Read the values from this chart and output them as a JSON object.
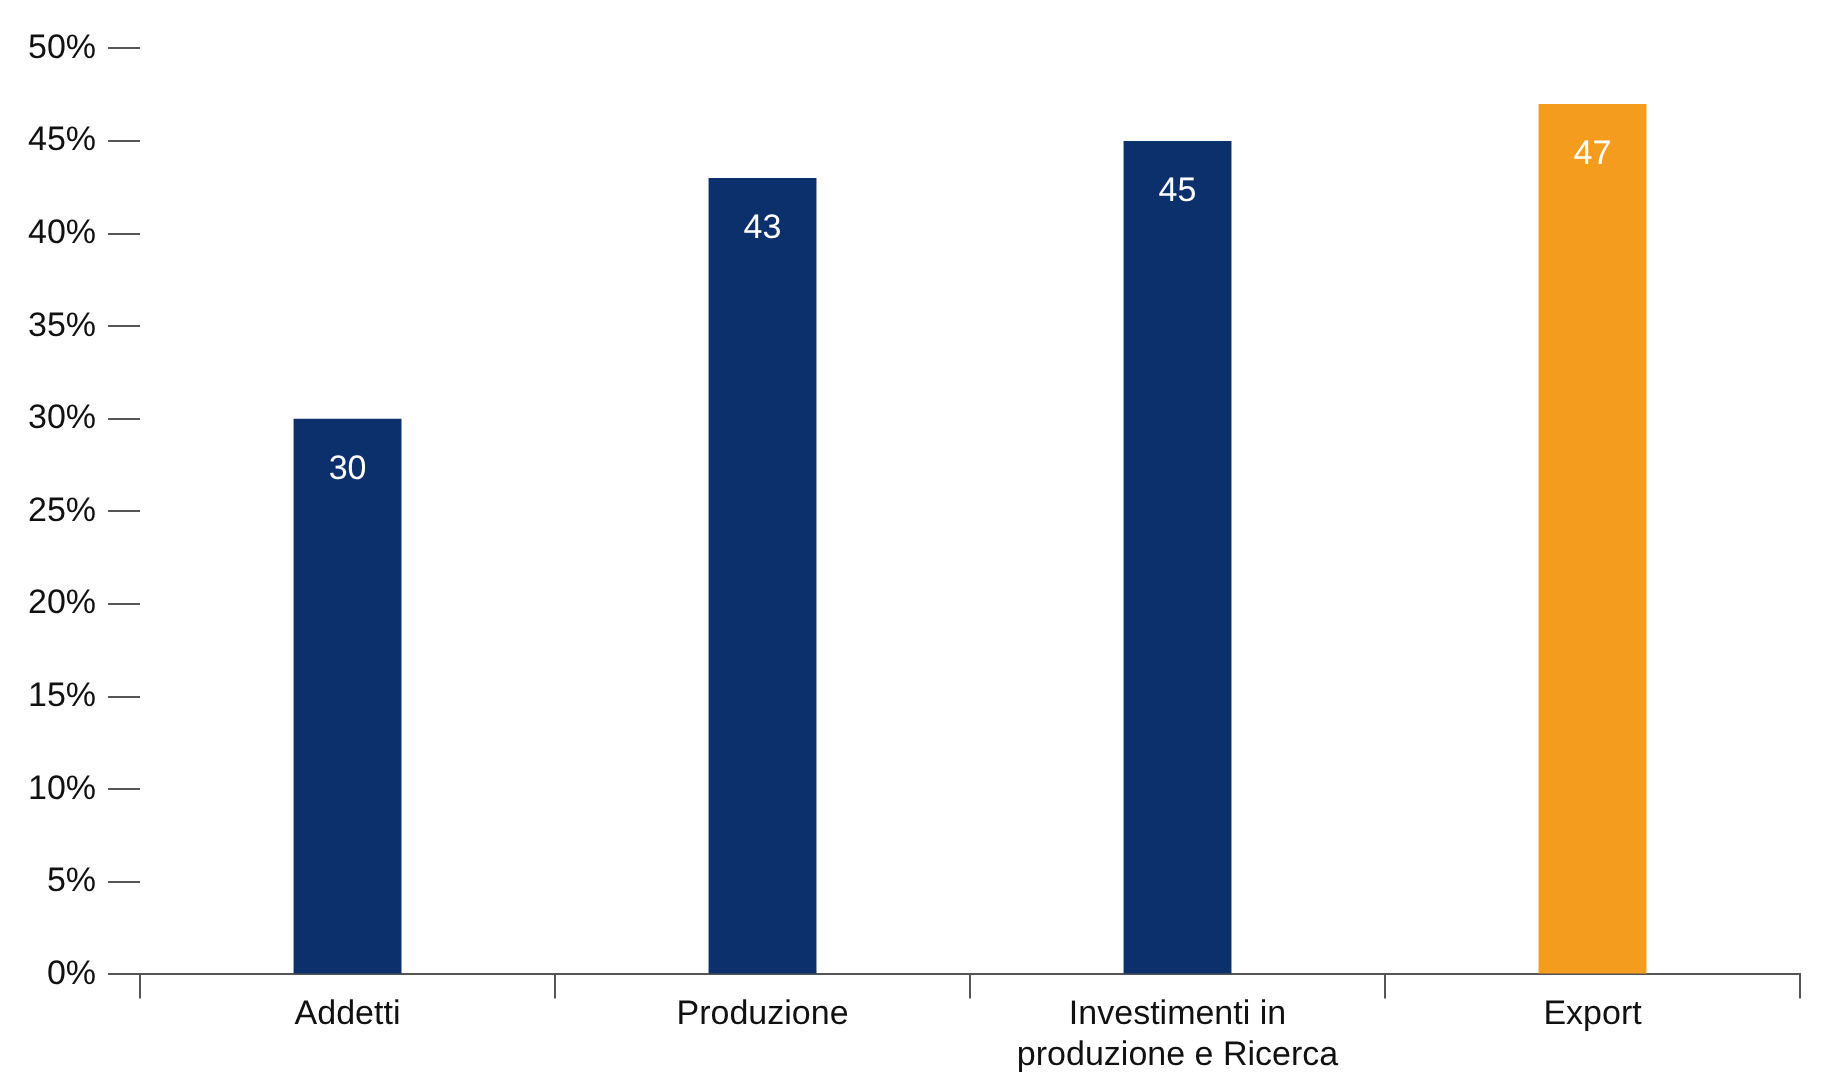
{
  "chart_data": {
    "type": "bar",
    "categories": [
      "Addetti",
      "Produzione",
      "Investimenti in produzione e Ricerca",
      "Export"
    ],
    "values": [
      30,
      43,
      45,
      47
    ],
    "colors": [
      "#0b306b",
      "#0b306b",
      "#0b306b",
      "#f49c1d"
    ],
    "ylim": [
      0,
      50
    ],
    "yticks": [
      {
        "value": 0,
        "label": "0%"
      },
      {
        "value": 5,
        "label": "5%"
      },
      {
        "value": 10,
        "label": "10%"
      },
      {
        "value": 15,
        "label": "15%"
      },
      {
        "value": 20,
        "label": "20%"
      },
      {
        "value": 25,
        "label": "25%"
      },
      {
        "value": 30,
        "label": "30%"
      },
      {
        "value": 35,
        "label": "35%"
      },
      {
        "value": 40,
        "label": "40%"
      },
      {
        "value": 45,
        "label": "45%"
      },
      {
        "value": 50,
        "label": "50%"
      }
    ],
    "data_labels": true,
    "grid": false,
    "legend": false
  }
}
